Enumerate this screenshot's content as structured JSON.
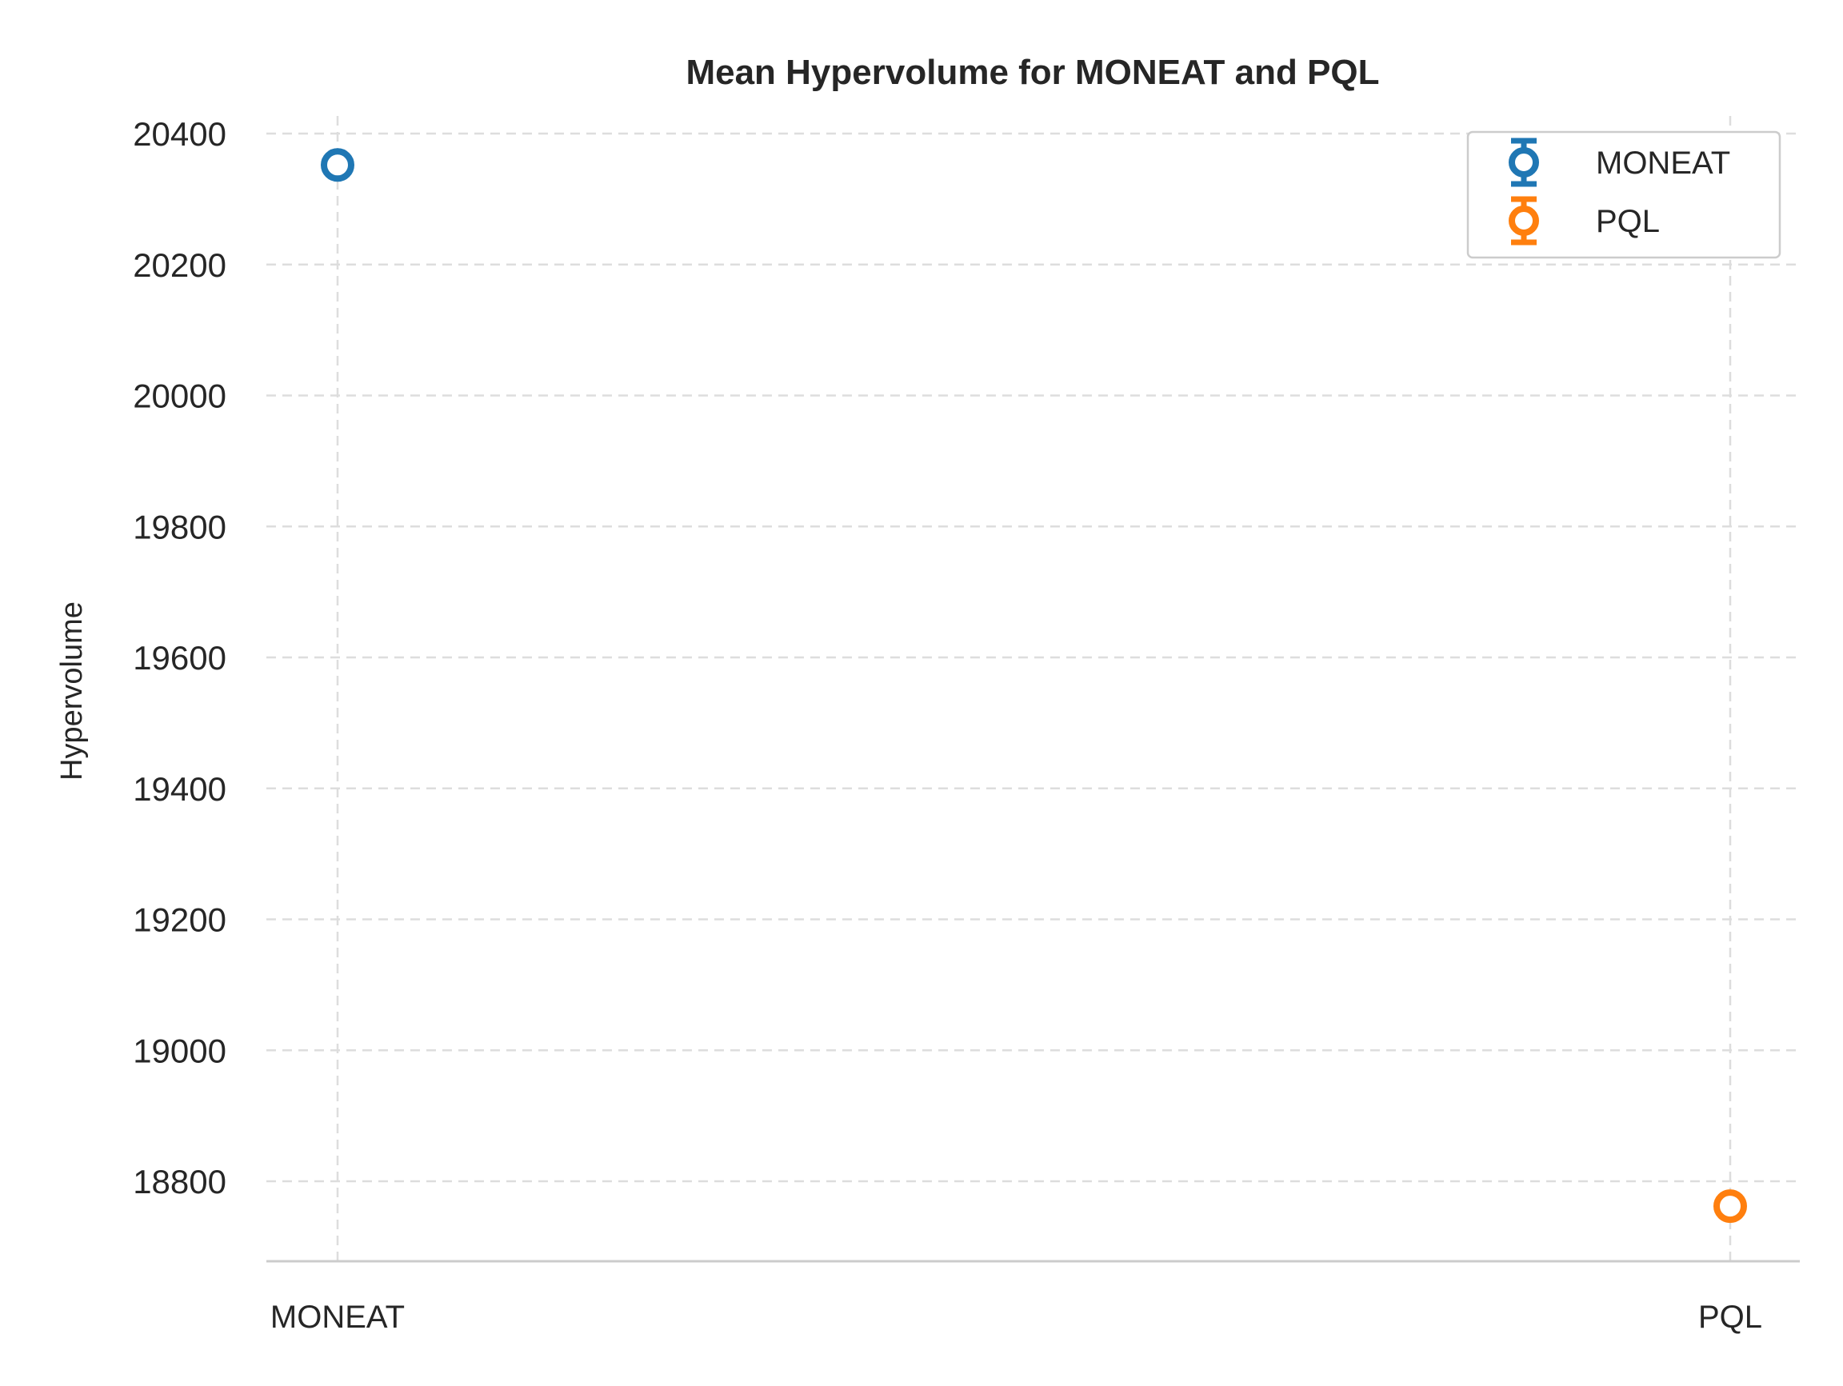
{
  "chart_data": {
    "type": "scatter",
    "title": "Mean Hypervolume for MONEAT and PQL",
    "xlabel": "",
    "ylabel": "Hypervolume",
    "categories": [
      "MONEAT",
      "PQL"
    ],
    "series": [
      {
        "name": "MONEAT",
        "category": "MONEAT",
        "value": 20352,
        "color": "#1f77b4",
        "marker": "open-circle"
      },
      {
        "name": "PQL",
        "category": "PQL",
        "value": 18762,
        "color": "#ff7f0e",
        "marker": "open-circle"
      }
    ],
    "ylim": [
      18685,
      20432
    ],
    "yticks": [
      18800,
      19000,
      19200,
      19400,
      19600,
      19800,
      20000,
      20200,
      20400
    ],
    "grid": true,
    "grid_style": "dashed",
    "legend_position": "top-right"
  }
}
